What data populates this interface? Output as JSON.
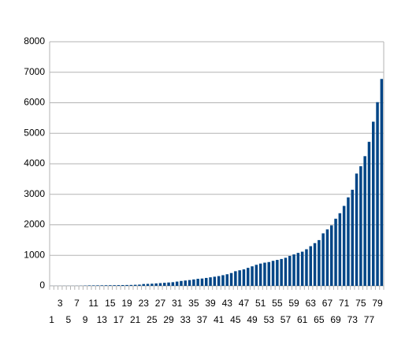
{
  "chart_data": {
    "type": "bar",
    "categories": [
      1,
      null,
      3,
      null,
      5,
      null,
      7,
      null,
      9,
      null,
      11,
      null,
      13,
      null,
      15,
      null,
      17,
      null,
      19,
      null,
      21,
      null,
      23,
      null,
      25,
      null,
      27,
      null,
      29,
      null,
      31,
      null,
      33,
      null,
      35,
      null,
      37,
      null,
      39,
      null,
      41,
      null,
      43,
      null,
      45,
      null,
      47,
      null,
      49,
      null,
      51,
      null,
      53,
      null,
      55,
      null,
      57,
      null,
      59,
      null,
      61,
      null,
      63,
      null,
      65,
      null,
      67,
      null,
      69,
      null,
      71,
      null,
      73,
      null,
      75,
      null,
      77,
      null,
      79,
      null
    ],
    "values": [
      2,
      2,
      2,
      3,
      3,
      3,
      4,
      5,
      10,
      15,
      16,
      17,
      18,
      20,
      21,
      22,
      24,
      26,
      28,
      30,
      35,
      40,
      60,
      65,
      70,
      80,
      90,
      100,
      110,
      120,
      140,
      160,
      175,
      190,
      210,
      230,
      240,
      260,
      280,
      300,
      320,
      350,
      380,
      420,
      480,
      510,
      540,
      590,
      640,
      690,
      730,
      760,
      780,
      820,
      850,
      880,
      920,
      980,
      1030,
      1080,
      1120,
      1200,
      1300,
      1400,
      1500,
      1720,
      1850,
      1980,
      2200,
      2380,
      2620,
      2900,
      3150,
      3680,
      3920,
      4250,
      4720,
      5380,
      6020,
      6780
    ],
    "color": "#004586",
    "ylim": [
      0,
      8000
    ],
    "yticks": [
      0,
      1000,
      2000,
      3000,
      4000,
      5000,
      6000,
      7000,
      8000
    ],
    "grid": true
  }
}
